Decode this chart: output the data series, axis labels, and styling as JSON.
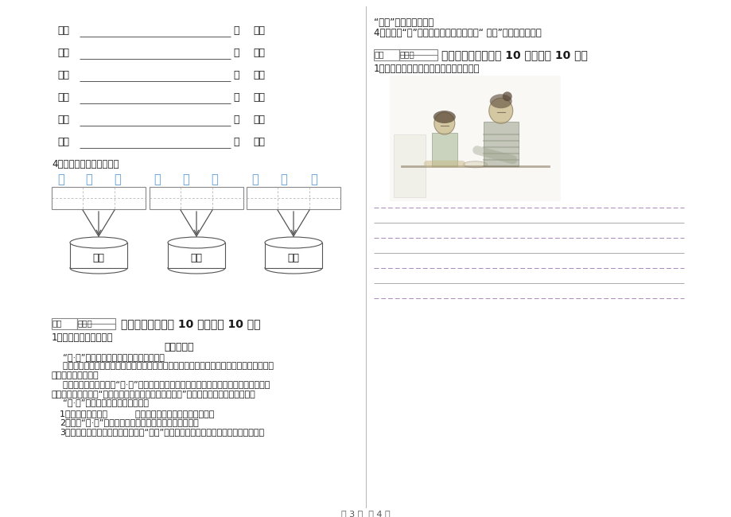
{
  "page_bg": "#ffffff",
  "footer_text": "第 3 页  共 4 页",
  "left_section1_items": [
    "四：",
    "头：",
    "长：",
    "电：",
    "车：",
    "出："
  ],
  "section4_label": "4、我能让花儿开得更美。",
  "all_chars": [
    "子",
    "无",
    "目",
    "也",
    "出",
    "公",
    "长",
    "头",
    "马"
  ],
  "bucket_labels": [
    "三画",
    "四画",
    "五画"
  ],
  "section7_box1": "得分",
  "section7_box2": "评卷人",
  "section7_title": "七、阅读题（每题 10 分，共计 10 分）",
  "section7_intro": "1、阅读短文，做练习。",
  "section7_article_title": "快乐的节日",
  "section7_para1": "    “六·一”儿童节来了，小朋友们可开心啦！",
  "section7_para2a": "    今年过节可真丰富，有的进行了节目表演，有的组织了游艺活动，有的观看了卡通剧，还收",
  "section7_para2b": "到了精美小礼物呢！",
  "section7_para3a": "    我最开心的是我当上了“六·一”的礼仪小姐，给和我们一起过节的市长伯伯献上红领巾，",
  "section7_para3b": "市长伯伯亲切地说：“谢谢你，小朋友，祝你节日快乐！”我听了高兴得不知说什么了。",
  "section7_para4": "    “六·一”真快乐，我永远也忘不了。",
  "section7_q1": "1．这篇短文共有（          ）个自然段。请你用序号标出来。",
  "section7_q2": "2．今年“六·一”都有哪些活动？用横线在文章中划出来。",
  "section7_q3": "3．仔细读文章，请你在文中找到与“开心”意思差不多的两个词，写在下面的横线上。",
  "right_intro1": "“开心”的近义词朋友：",
  "right_intro2": "4．文中的“我”最开心的是什么？请你用“ ～～”把句子划出来。",
  "section8_box1": "得分",
  "section8_box2": "评卷人",
  "section8_title": "八、看图作答（每题 10 分，共计 10 分）",
  "section8_q1": "1、看图说话。（谁？在哪里？干什么？）",
  "color_chars": "#5b9bd5",
  "color_black": "#1a1a1a",
  "color_gray": "#777777",
  "color_line": "#888888",
  "color_dashed": "#9966aa"
}
